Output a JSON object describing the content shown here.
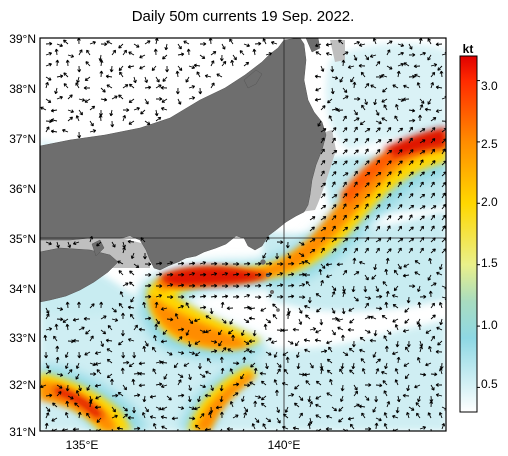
{
  "title": "Daily 50m currents 19 Sep. 2022.",
  "unit": "kt",
  "colors": {
    "land": "#6e6e6e",
    "shelf": "#bfbfbf",
    "sea_low": "#ffffff",
    "frame": "#000000"
  },
  "map": {
    "lat_labels": [
      "39°N",
      "38°N",
      "37°N",
      "36°N",
      "35°N",
      "34°N",
      "33°N",
      "32°N",
      "31°N"
    ],
    "lon_labels": [
      "135°E",
      "140°E"
    ]
  },
  "colorbar": {
    "tick_labels": [
      "3.0",
      "2.5",
      "2.0",
      "1.5",
      "1.0",
      "0.5"
    ],
    "stops": [
      {
        "v": 0.3,
        "c": "#ffffff"
      },
      {
        "v": 0.5,
        "c": "#d8f2f6"
      },
      {
        "v": 0.9,
        "c": "#8ed8e4"
      },
      {
        "v": 1.2,
        "c": "#a8dcc0"
      },
      {
        "v": 1.5,
        "c": "#eaf08a"
      },
      {
        "v": 2.0,
        "c": "#ffd700"
      },
      {
        "v": 2.5,
        "c": "#ff8c00"
      },
      {
        "v": 3.0,
        "c": "#ff2a00"
      },
      {
        "v": 3.2,
        "c": "#e00000"
      }
    ]
  }
}
